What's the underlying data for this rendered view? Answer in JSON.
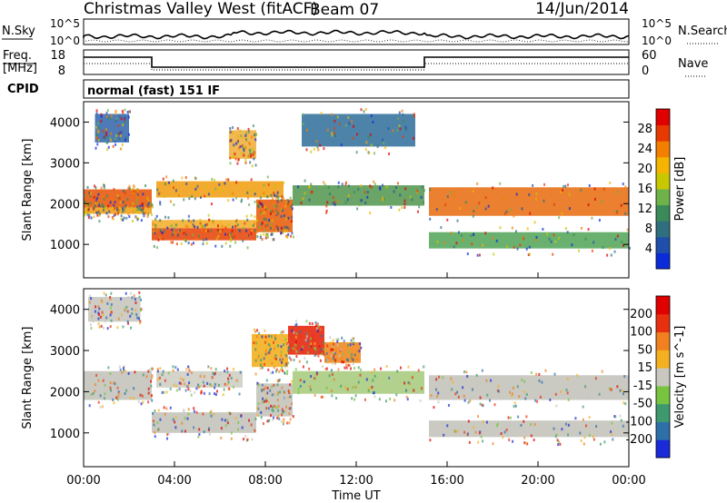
{
  "header": {
    "title": "Christmas Valley West (fitACF)",
    "beam": "Beam 07",
    "date": "14/Jun/2014"
  },
  "strip_sky": {
    "left_label": "N.Sky",
    "left_ticks": [
      "10^5",
      "10^0"
    ],
    "right_ticks": [
      "10^5",
      "10^0"
    ],
    "right_label": "N.Search"
  },
  "strip_freq": {
    "left_label_1": "Freq.",
    "left_label_2": "[MHz]",
    "left_ticks": [
      "18",
      "8"
    ],
    "right_ticks": [
      "60",
      "0"
    ],
    "right_label": "Nave"
  },
  "cpid": {
    "label": "CPID",
    "value": "normal (fast) 151 IF"
  },
  "chart_data": [
    {
      "type": "heatmap",
      "name": "power-panel",
      "ylabel": "Slant Range [km]",
      "ylim": [
        180,
        4500
      ],
      "yticks": [
        "1000",
        "2000",
        "3000",
        "4000"
      ],
      "xlim": [
        0,
        24
      ],
      "colorbar": {
        "label": "Power [dB]",
        "ticks": [
          "4",
          "8",
          "12",
          "16",
          "20",
          "24",
          "28"
        ],
        "colors": [
          "#0b2bdb",
          "#1f4faa",
          "#2f6f7f",
          "#3a8a5a",
          "#6fb24a",
          "#c8c800",
          "#f4b400",
          "#f37f00",
          "#e83a00",
          "#e00000"
        ]
      },
      "bands": [
        {
          "t0": 0.0,
          "t1": 3.0,
          "r0": 1900,
          "r1": 2350,
          "color": "#e85a10"
        },
        {
          "t0": 0.0,
          "t1": 3.0,
          "r0": 1750,
          "r1": 1900,
          "color": "#f1a21a"
        },
        {
          "t0": 3.0,
          "t1": 7.6,
          "r0": 1100,
          "r1": 1400,
          "color": "#e84a10"
        },
        {
          "t0": 3.0,
          "t1": 7.6,
          "r0": 1400,
          "r1": 1600,
          "color": "#f3b030"
        },
        {
          "t0": 7.6,
          "t1": 9.2,
          "r0": 1300,
          "r1": 2100,
          "color": "#e8620f"
        },
        {
          "t0": 9.2,
          "t1": 15.0,
          "r0": 1950,
          "r1": 2450,
          "color": "#5a9a55"
        },
        {
          "t0": 15.2,
          "t1": 24.0,
          "r0": 1700,
          "r1": 2400,
          "color": "#e8721a"
        },
        {
          "t0": 3.2,
          "t1": 8.8,
          "r0": 2150,
          "r1": 2550,
          "color": "#f1a21a"
        },
        {
          "t0": 6.4,
          "t1": 7.6,
          "r0": 3100,
          "r1": 3800,
          "color": "#f0b040"
        },
        {
          "t0": 0.5,
          "t1": 2.0,
          "r0": 3500,
          "r1": 4200,
          "color": "#3b6db0"
        },
        {
          "t0": 9.6,
          "t1": 14.6,
          "r0": 3400,
          "r1": 4200,
          "color": "#3a75a0"
        },
        {
          "t0": 15.2,
          "t1": 24.0,
          "r0": 900,
          "r1": 1300,
          "color": "#5aa860"
        }
      ]
    },
    {
      "type": "heatmap",
      "name": "velocity-panel",
      "ylabel": "Slant Range [km]",
      "ylim": [
        180,
        4500
      ],
      "yticks": [
        "1000",
        "2000",
        "3000",
        "4000"
      ],
      "xlim": [
        0,
        24
      ],
      "xticks": [
        "00:00",
        "04:00",
        "08:00",
        "12:00",
        "16:00",
        "20:00",
        "00:00"
      ],
      "xlabel": "Time UT",
      "colorbar": {
        "label": "Velocity [m s^-1]",
        "ticks": [
          "200",
          "100",
          "50",
          "15",
          "-15",
          "-50",
          "-100",
          "-200"
        ],
        "colors": [
          "#1a2ad8",
          "#2f6fa8",
          "#3e9a6e",
          "#78c440",
          "#c8c8c0",
          "#f4b020",
          "#f08020",
          "#e83010",
          "#e00000"
        ]
      },
      "bands": [
        {
          "t0": 0.0,
          "t1": 3.0,
          "r0": 1800,
          "r1": 2500,
          "color": "#c4c4bc"
        },
        {
          "t0": 3.0,
          "t1": 7.6,
          "r0": 1000,
          "r1": 1500,
          "color": "#c4c4bc"
        },
        {
          "t0": 7.6,
          "t1": 9.2,
          "r0": 1400,
          "r1": 2200,
          "color": "#c4c4bc"
        },
        {
          "t0": 9.2,
          "t1": 15.0,
          "r0": 1950,
          "r1": 2500,
          "color": "#a8cc80"
        },
        {
          "t0": 15.2,
          "t1": 24.0,
          "r0": 1800,
          "r1": 2400,
          "color": "#c4c4bc"
        },
        {
          "t0": 9.0,
          "t1": 10.6,
          "r0": 2900,
          "r1": 3600,
          "color": "#e82810"
        },
        {
          "t0": 10.6,
          "t1": 12.2,
          "r0": 2700,
          "r1": 3200,
          "color": "#f08a20"
        },
        {
          "t0": 7.4,
          "t1": 9.0,
          "r0": 2600,
          "r1": 3400,
          "color": "#f4b020"
        },
        {
          "t0": 3.2,
          "t1": 7.0,
          "r0": 2100,
          "r1": 2500,
          "color": "#cfcfc4"
        },
        {
          "t0": 15.2,
          "t1": 24.0,
          "r0": 900,
          "r1": 1300,
          "color": "#c4c4bc"
        },
        {
          "t0": 0.2,
          "t1": 2.5,
          "r0": 3700,
          "r1": 4300,
          "color": "#c8c8c0"
        }
      ]
    }
  ]
}
